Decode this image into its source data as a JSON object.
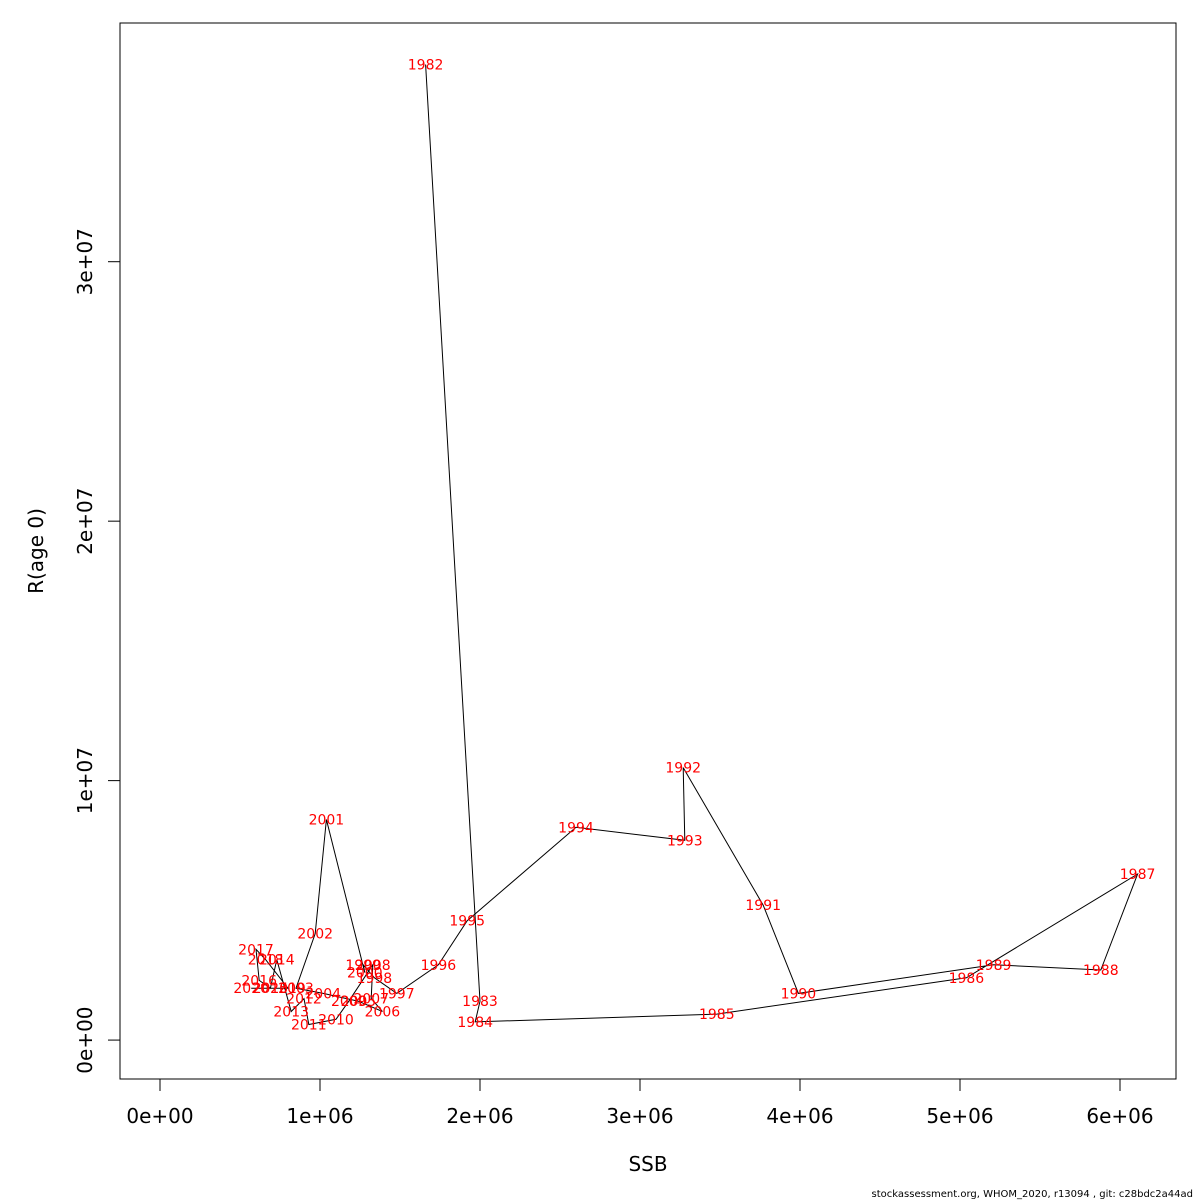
{
  "chart_data": {
    "type": "line",
    "xlabel": "SSB",
    "ylabel": "R(age 0)",
    "xlim": [
      -250000,
      6350000
    ],
    "ylim": [
      -1500000,
      39200000
    ],
    "x_ticks": [
      0,
      1000000,
      2000000,
      3000000,
      4000000,
      5000000,
      6000000
    ],
    "x_tick_labels": [
      "0e+00",
      "1e+06",
      "2e+06",
      "3e+06",
      "4e+06",
      "5e+06",
      "6e+06"
    ],
    "y_ticks": [
      0,
      10000000,
      20000000,
      30000000
    ],
    "y_tick_labels": [
      "0e+00",
      "1e+07",
      "2e+07",
      "3e+07"
    ],
    "grid": false,
    "label_color": "#ff0000",
    "line_color": "#000000",
    "points": [
      {
        "year": "1982",
        "ssb": 1660000,
        "r": 37600000
      },
      {
        "year": "1983",
        "ssb": 2000000,
        "r": 1500000
      },
      {
        "year": "1984",
        "ssb": 1970000,
        "r": 700000
      },
      {
        "year": "1985",
        "ssb": 3480000,
        "r": 1000000
      },
      {
        "year": "1986",
        "ssb": 5040000,
        "r": 2400000
      },
      {
        "year": "1987",
        "ssb": 6110000,
        "r": 6400000
      },
      {
        "year": "1988",
        "ssb": 5880000,
        "r": 2700000
      },
      {
        "year": "1989",
        "ssb": 5210000,
        "r": 2900000
      },
      {
        "year": "1990",
        "ssb": 3990000,
        "r": 1800000
      },
      {
        "year": "1991",
        "ssb": 3770000,
        "r": 5200000
      },
      {
        "year": "1992",
        "ssb": 3270000,
        "r": 10500000
      },
      {
        "year": "1993",
        "ssb": 3280000,
        "r": 7700000
      },
      {
        "year": "1994",
        "ssb": 2600000,
        "r": 8200000
      },
      {
        "year": "1995",
        "ssb": 1920000,
        "r": 4600000
      },
      {
        "year": "1996",
        "ssb": 1740000,
        "r": 2900000
      },
      {
        "year": "1997",
        "ssb": 1480000,
        "r": 1800000
      },
      {
        "year": "1998",
        "ssb": 1340000,
        "r": 2400000
      },
      {
        "year": "1999",
        "ssb": 1270000,
        "r": 2900000
      },
      {
        "year": "2000",
        "ssb": 1280000,
        "r": 2600000
      },
      {
        "year": "2001",
        "ssb": 1040000,
        "r": 8500000
      },
      {
        "year": "2002",
        "ssb": 970000,
        "r": 4100000
      },
      {
        "year": "2003",
        "ssb": 850000,
        "r": 2000000
      },
      {
        "year": "2004",
        "ssb": 1020000,
        "r": 1800000
      },
      {
        "year": "2005",
        "ssb": 1240000,
        "r": 1500000
      },
      {
        "year": "2006",
        "ssb": 1390000,
        "r": 1100000
      },
      {
        "year": "2007",
        "ssb": 1320000,
        "r": 1600000
      },
      {
        "year": "2008",
        "ssb": 1330000,
        "r": 2900000
      },
      {
        "year": "2009",
        "ssb": 1180000,
        "r": 1500000
      },
      {
        "year": "2010",
        "ssb": 1100000,
        "r": 800000
      },
      {
        "year": "2011",
        "ssb": 930000,
        "r": 600000
      },
      {
        "year": "2012",
        "ssb": 900000,
        "r": 1600000
      },
      {
        "year": "2013",
        "ssb": 820000,
        "r": 1100000
      },
      {
        "year": "2014",
        "ssb": 730000,
        "r": 3100000
      },
      {
        "year": "2015",
        "ssb": 690000,
        "r": 2000000
      },
      {
        "year": "2016",
        "ssb": 620000,
        "r": 2300000
      },
      {
        "year": "2017",
        "ssb": 600000,
        "r": 3500000
      },
      {
        "year": "2018",
        "ssb": 660000,
        "r": 3100000
      },
      {
        "year": "2019",
        "ssb": 800000,
        "r": 2000000
      },
      {
        "year": "2020",
        "ssb": 570000,
        "r": 2000000
      }
    ]
  },
  "footer": {
    "note": "stockassessment.org, WHOM_2020, r13094 , git: c28bdc2a44ad"
  }
}
